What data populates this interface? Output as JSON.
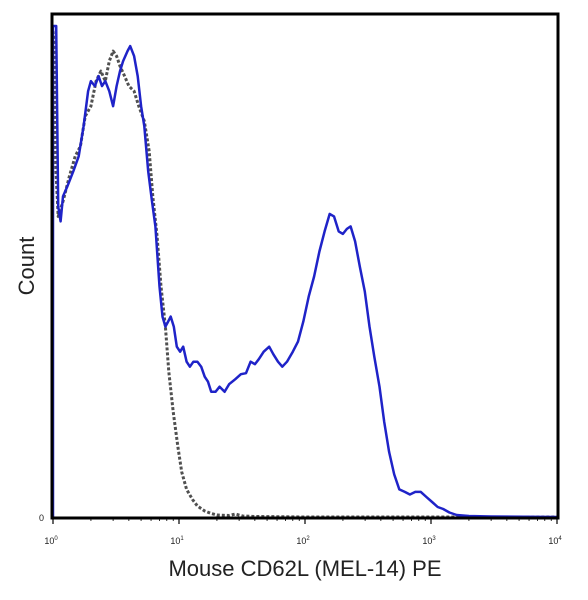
{
  "chart_data": {
    "type": "line",
    "title": "",
    "xlabel": "Mouse CD62L (MEL-14) PE",
    "ylabel": "Count",
    "xscale": "log",
    "xlim": [
      1,
      10000
    ],
    "x_ticks": [
      {
        "base": "10",
        "exp": "0"
      },
      {
        "base": "10",
        "exp": "1"
      },
      {
        "base": "10",
        "exp": "2"
      },
      {
        "base": "10",
        "exp": "3"
      },
      {
        "base": "10",
        "exp": "4"
      }
    ],
    "y_tick_label": "0",
    "ylim": [
      0,
      100
    ],
    "grid": false,
    "legend": false,
    "series": [
      {
        "style": "dotted",
        "color": "#505050",
        "points": [
          [
            1.0,
            97
          ],
          [
            1.02,
            95
          ],
          [
            1.05,
            70
          ],
          [
            1.1,
            60
          ],
          [
            1.2,
            63
          ],
          [
            1.35,
            68
          ],
          [
            1.5,
            72
          ],
          [
            1.65,
            74
          ],
          [
            1.8,
            80
          ],
          [
            2.0,
            82
          ],
          [
            2.2,
            87
          ],
          [
            2.4,
            89
          ],
          [
            2.6,
            87
          ],
          [
            2.8,
            91
          ],
          [
            3.0,
            93
          ],
          [
            3.2,
            92
          ],
          [
            3.4,
            90
          ],
          [
            3.7,
            88
          ],
          [
            4.0,
            86
          ],
          [
            4.4,
            85
          ],
          [
            4.8,
            82
          ],
          [
            5.3,
            79
          ],
          [
            5.8,
            73
          ],
          [
            6.2,
            64
          ],
          [
            6.7,
            56
          ],
          [
            7.2,
            46
          ],
          [
            7.8,
            38
          ],
          [
            8.3,
            29
          ],
          [
            9.0,
            21
          ],
          [
            9.8,
            14
          ],
          [
            10.5,
            9
          ],
          [
            11.5,
            5.5
          ],
          [
            12.8,
            3.5
          ],
          [
            14.0,
            2.2
          ],
          [
            16.0,
            1.2
          ],
          [
            18.0,
            0.7
          ],
          [
            20.0,
            0.4
          ],
          [
            25.0,
            0.3
          ],
          [
            28.0,
            0.6
          ],
          [
            32.0,
            0.2
          ],
          [
            40.0,
            0.1
          ],
          [
            60.0,
            0.05
          ],
          [
            100.0,
            0
          ],
          [
            1000.0,
            0
          ],
          [
            10000.0,
            0
          ]
        ]
      },
      {
        "style": "solid",
        "color": "#1f23c8",
        "points": [
          [
            1.0,
            0
          ],
          [
            1.0,
            98
          ],
          [
            1.06,
            98
          ],
          [
            1.08,
            80
          ],
          [
            1.1,
            62
          ],
          [
            1.15,
            59
          ],
          [
            1.2,
            64
          ],
          [
            1.3,
            66
          ],
          [
            1.45,
            69
          ],
          [
            1.6,
            72
          ],
          [
            1.75,
            78
          ],
          [
            1.9,
            85
          ],
          [
            2.0,
            87
          ],
          [
            2.15,
            86
          ],
          [
            2.3,
            88
          ],
          [
            2.45,
            86
          ],
          [
            2.6,
            87
          ],
          [
            2.8,
            85
          ],
          [
            3.0,
            82
          ],
          [
            3.2,
            86
          ],
          [
            3.4,
            89
          ],
          [
            3.6,
            91
          ],
          [
            3.9,
            93
          ],
          [
            4.1,
            94
          ],
          [
            4.4,
            92
          ],
          [
            4.7,
            88
          ],
          [
            5.0,
            82
          ],
          [
            5.3,
            78
          ],
          [
            5.7,
            69
          ],
          [
            6.1,
            63
          ],
          [
            6.5,
            58
          ],
          [
            7.0,
            46
          ],
          [
            7.4,
            40
          ],
          [
            7.8,
            38
          ],
          [
            8.2,
            39
          ],
          [
            8.6,
            40
          ],
          [
            9.1,
            38
          ],
          [
            9.6,
            34
          ],
          [
            10.2,
            33
          ],
          [
            10.8,
            34
          ],
          [
            11.5,
            31
          ],
          [
            12.2,
            30
          ],
          [
            13.0,
            31
          ],
          [
            14.0,
            31
          ],
          [
            15.0,
            30
          ],
          [
            16.0,
            28
          ],
          [
            17.0,
            27
          ],
          [
            18.0,
            25
          ],
          [
            19.5,
            25
          ],
          [
            21.0,
            26
          ],
          [
            23.0,
            25
          ],
          [
            25.0,
            26.5
          ],
          [
            28.0,
            27.5
          ],
          [
            31.0,
            28.5
          ],
          [
            34.0,
            28.7
          ],
          [
            37.0,
            31
          ],
          [
            40.0,
            30.5
          ],
          [
            43.0,
            31.5
          ],
          [
            47.0,
            33
          ],
          [
            52.0,
            34
          ],
          [
            56.0,
            32.5
          ],
          [
            61.0,
            31
          ],
          [
            66.0,
            30
          ],
          [
            72.0,
            31
          ],
          [
            80.0,
            33
          ],
          [
            88.0,
            35
          ],
          [
            97.0,
            39
          ],
          [
            107.0,
            44
          ],
          [
            118.0,
            48
          ],
          [
            130.0,
            53
          ],
          [
            143.0,
            57
          ],
          [
            157.0,
            60.5
          ],
          [
            170.0,
            60
          ],
          [
            185.0,
            57
          ],
          [
            200.0,
            56.5
          ],
          [
            215.0,
            57.5
          ],
          [
            230.0,
            58
          ],
          [
            250.0,
            55
          ],
          [
            272.0,
            50
          ],
          [
            298.0,
            45
          ],
          [
            325.0,
            38
          ],
          [
            355.0,
            32
          ],
          [
            390.0,
            26
          ],
          [
            425.0,
            19
          ],
          [
            465.0,
            13
          ],
          [
            510.0,
            8.5
          ],
          [
            560.0,
            5.5
          ],
          [
            620.0,
            5
          ],
          [
            680.0,
            4.5
          ],
          [
            750.0,
            5
          ],
          [
            830.0,
            5
          ],
          [
            920.0,
            4
          ],
          [
            1020.0,
            3
          ],
          [
            1130.0,
            2
          ],
          [
            1250.0,
            1.6
          ],
          [
            1400.0,
            0.9
          ],
          [
            1600.0,
            0.4
          ],
          [
            2000.0,
            0.2
          ],
          [
            3000.0,
            0.1
          ],
          [
            10000.0,
            0
          ]
        ]
      }
    ]
  }
}
